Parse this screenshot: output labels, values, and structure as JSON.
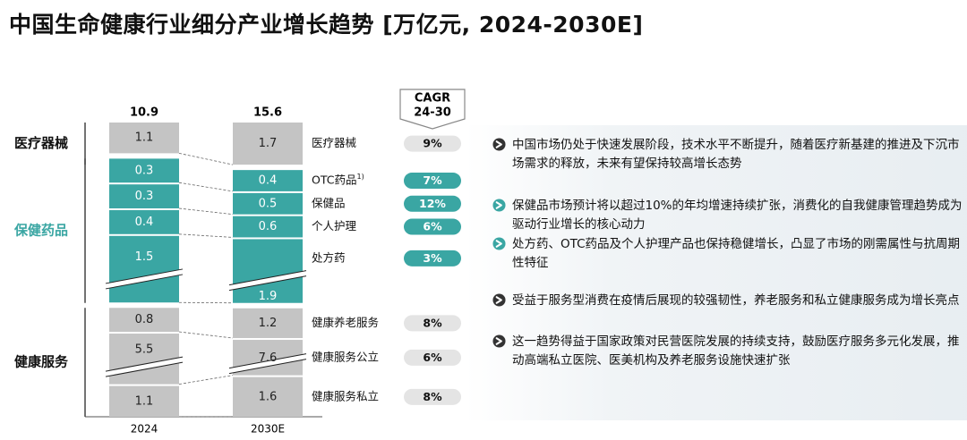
{
  "title": "中国生命健康行业细分产业增长趋势 [万亿元, 2024-2030E]",
  "cagr_header": {
    "line1": "CAGR",
    "line2": "24-30"
  },
  "groups": [
    {
      "label": "医疗器械",
      "color": "#111111"
    },
    {
      "label": "保健药品",
      "color": "#3aa6a3"
    },
    {
      "label": "健康服务",
      "color": "#111111"
    }
  ],
  "bullets": [
    {
      "text": "中国市场仍处于快速发展阶段，技术水平不断提升，随着医疗新基建的推进及下沉市场需求的释放，未来有望保持较高增长态势"
    },
    {
      "text": "保健品市场预计将以超过10%的年均增速持续扩张，消费化的自我健康管理趋势成为驱动行业增长的核心动力"
    },
    {
      "text": "处方药、OTC药品及个人护理产品也保持稳健增长，凸显了市场的刚需属性与抗周期性特征"
    },
    {
      "text": "受益于服务型消费在疫情后展现的较强韧性，养老服务和私立健康服务成为增长亮点"
    },
    {
      "text": "这一趋势得益于国家政策对民营医院发展的持续支持，鼓励医疗服务多元化发展，推动高端私立医院、医美机构及养老服务设施快速扩张"
    }
  ],
  "chart_data": {
    "type": "bar",
    "stacked": true,
    "broken_segments": true,
    "categories": [
      "2024",
      "2030E"
    ],
    "totals": [
      10.9,
      15.6
    ],
    "series": [
      {
        "name": "医疗器械",
        "values": [
          1.1,
          1.7
        ],
        "cagr": "9%",
        "color": "#c4c4c4",
        "text_color": "#222222",
        "broken": false
      },
      {
        "name": "OTC药品",
        "footnote": "1)",
        "values": [
          0.3,
          0.4
        ],
        "cagr": "7%",
        "color": "#3aa6a3",
        "text_color": "#ffffff",
        "broken": false
      },
      {
        "name": "保健品",
        "values": [
          0.3,
          0.5
        ],
        "cagr": "12%",
        "color": "#3aa6a3",
        "text_color": "#ffffff",
        "broken": false
      },
      {
        "name": "个人护理",
        "values": [
          0.4,
          0.6
        ],
        "cagr": "6%",
        "color": "#3aa6a3",
        "text_color": "#ffffff",
        "broken": false
      },
      {
        "name": "处方药",
        "values": [
          1.5,
          1.9
        ],
        "cagr": "3%",
        "color": "#3aa6a3",
        "text_color": "#ffffff",
        "broken": true
      },
      {
        "name": "健康养老服务",
        "values": [
          0.8,
          1.2
        ],
        "cagr": "8%",
        "color": "#c4c4c4",
        "text_color": "#222222",
        "broken": false
      },
      {
        "name": "健康服务公立",
        "values": [
          5.5,
          7.6
        ],
        "cagr": "6%",
        "color": "#c4c4c4",
        "text_color": "#222222",
        "broken": true
      },
      {
        "name": "健康服务私立",
        "values": [
          1.1,
          1.6
        ],
        "cagr": "8%",
        "color": "#c4c4c4",
        "text_color": "#222222",
        "broken": false
      }
    ]
  }
}
